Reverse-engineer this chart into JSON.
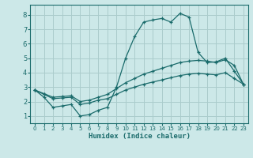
{
  "bg_color": "#cce8e8",
  "grid_color": "#aacccc",
  "line_color": "#1a6b6b",
  "xlabel": "Humidex (Indice chaleur)",
  "xlim": [
    -0.5,
    23.5
  ],
  "ylim": [
    0.5,
    8.7
  ],
  "yticks": [
    1,
    2,
    3,
    4,
    5,
    6,
    7,
    8
  ],
  "xticks": [
    0,
    1,
    2,
    3,
    4,
    5,
    6,
    7,
    8,
    9,
    10,
    11,
    12,
    13,
    14,
    15,
    16,
    17,
    18,
    19,
    20,
    21,
    22,
    23
  ],
  "line1_x": [
    0,
    1,
    2,
    3,
    4,
    5,
    6,
    7,
    8,
    9,
    10,
    11,
    12,
    13,
    14,
    15,
    16,
    17,
    18,
    19,
    20,
    21,
    22,
    23
  ],
  "line1_y": [
    2.8,
    2.3,
    1.6,
    1.7,
    1.8,
    1.0,
    1.1,
    1.4,
    1.6,
    3.0,
    5.0,
    6.5,
    7.5,
    7.65,
    7.75,
    7.5,
    8.1,
    7.85,
    5.4,
    4.7,
    4.75,
    5.0,
    4.1,
    3.2
  ],
  "line2_x": [
    0,
    1,
    2,
    3,
    4,
    5,
    6,
    7,
    8,
    9,
    10,
    11,
    12,
    13,
    14,
    15,
    16,
    17,
    18,
    19,
    20,
    21,
    22,
    23
  ],
  "line2_y": [
    2.8,
    2.55,
    2.3,
    2.35,
    2.4,
    2.0,
    2.1,
    2.3,
    2.5,
    2.9,
    3.3,
    3.6,
    3.9,
    4.1,
    4.3,
    4.5,
    4.7,
    4.8,
    4.85,
    4.8,
    4.7,
    4.9,
    4.5,
    3.2
  ],
  "line3_x": [
    0,
    1,
    2,
    3,
    4,
    5,
    6,
    7,
    8,
    9,
    10,
    11,
    12,
    13,
    14,
    15,
    16,
    17,
    18,
    19,
    20,
    21,
    22,
    23
  ],
  "line3_y": [
    2.8,
    2.5,
    2.2,
    2.25,
    2.3,
    1.8,
    1.9,
    2.1,
    2.2,
    2.5,
    2.8,
    3.0,
    3.2,
    3.35,
    3.5,
    3.65,
    3.8,
    3.9,
    3.95,
    3.9,
    3.85,
    4.0,
    3.6,
    3.2
  ]
}
